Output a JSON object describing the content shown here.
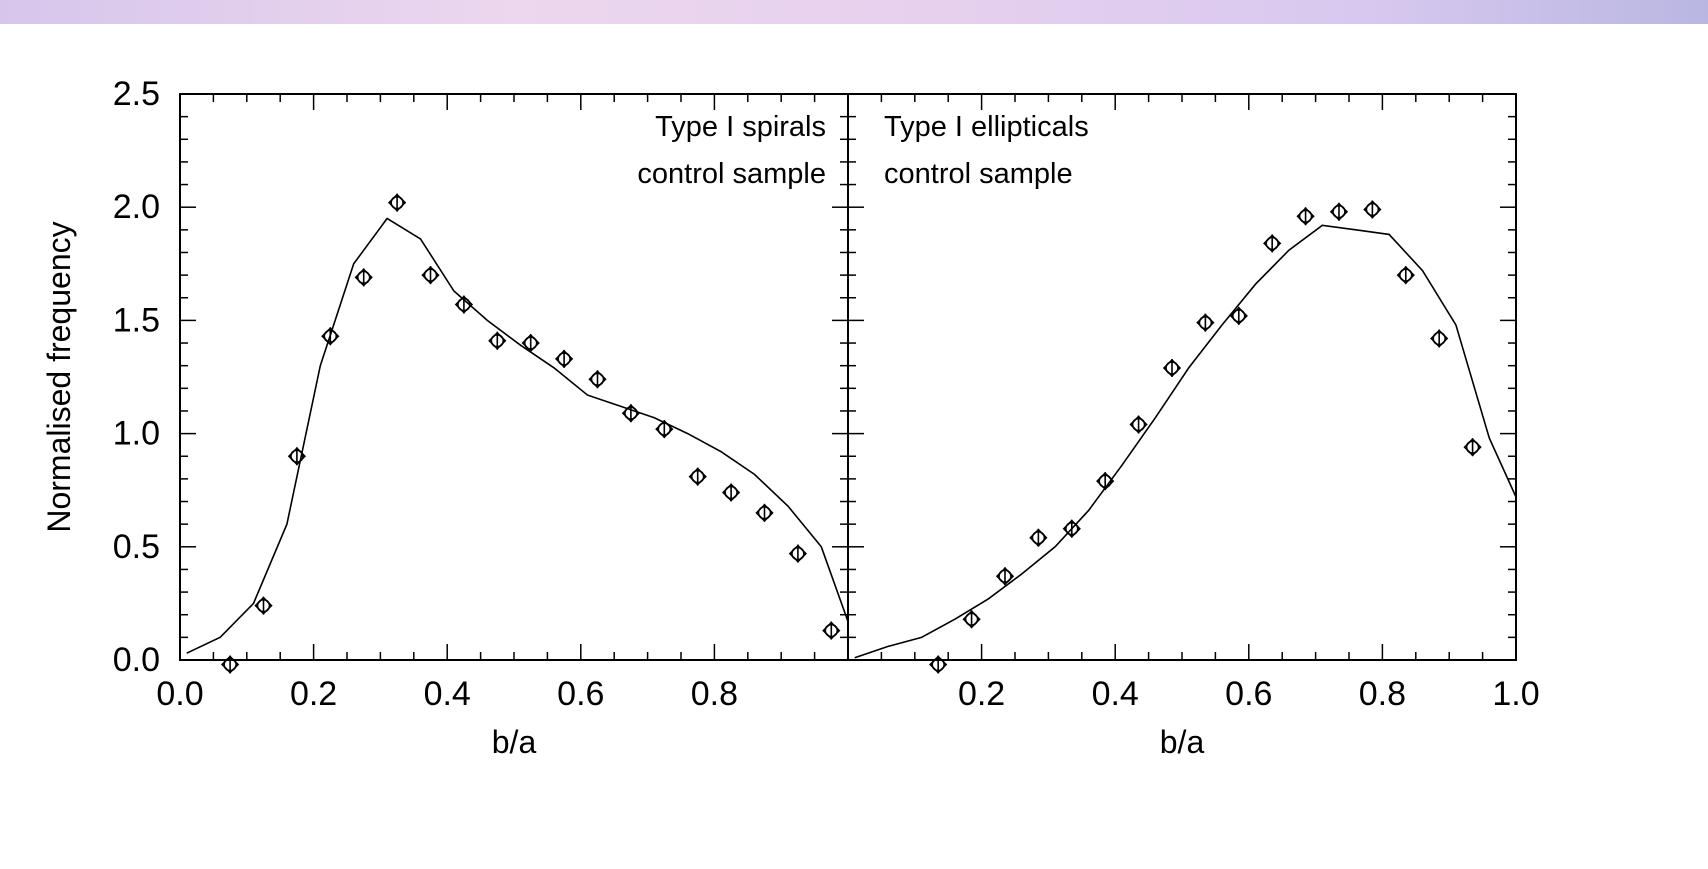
{
  "chart_data": [
    {
      "type": "scatter",
      "panel": "left",
      "title": "",
      "xlabel": "b/a",
      "ylabel": "Normalised frequency",
      "xlim": [
        0.0,
        1.0
      ],
      "ylim": [
        0.0,
        2.5
      ],
      "x_tick_labels": [
        "0.0",
        "0.2",
        "0.4",
        "0.6",
        "0.8"
      ],
      "y_tick_labels": [
        "0.0",
        "0.5",
        "1.0",
        "1.5",
        "2.0",
        "2.5"
      ],
      "annotation": [
        "Type I spirals",
        "control sample"
      ],
      "series": [
        {
          "kind": "points",
          "x": [
            0.075,
            0.125,
            0.175,
            0.225,
            0.275,
            0.325,
            0.375,
            0.425,
            0.475,
            0.525,
            0.575,
            0.625,
            0.675,
            0.725,
            0.775,
            0.825,
            0.875,
            0.925,
            0.975
          ],
          "y": [
            -0.02,
            0.24,
            0.9,
            1.43,
            1.69,
            2.02,
            1.7,
            1.57,
            1.41,
            1.4,
            1.33,
            1.24,
            1.09,
            1.02,
            0.81,
            0.74,
            0.65,
            0.47,
            0.13
          ]
        },
        {
          "kind": "line",
          "x": [
            0.01,
            0.06,
            0.11,
            0.16,
            0.21,
            0.26,
            0.31,
            0.36,
            0.41,
            0.46,
            0.51,
            0.56,
            0.61,
            0.66,
            0.71,
            0.76,
            0.81,
            0.86,
            0.91,
            0.96,
            1.0
          ],
          "y": [
            0.03,
            0.1,
            0.25,
            0.6,
            1.3,
            1.75,
            1.95,
            1.86,
            1.63,
            1.5,
            1.39,
            1.29,
            1.17,
            1.12,
            1.07,
            1.0,
            0.92,
            0.82,
            0.68,
            0.5,
            0.17
          ]
        }
      ]
    },
    {
      "type": "scatter",
      "panel": "right",
      "title": "",
      "xlabel": "b/a",
      "ylabel": "",
      "xlim": [
        0.0,
        1.0
      ],
      "ylim": [
        0.0,
        2.5
      ],
      "x_tick_labels": [
        "0.2",
        "0.4",
        "0.6",
        "0.8",
        "1.0"
      ],
      "annotation": [
        "Type I ellipticals",
        "control sample"
      ],
      "series": [
        {
          "kind": "points",
          "x": [
            0.135,
            0.185,
            0.235,
            0.285,
            0.335,
            0.385,
            0.435,
            0.485,
            0.535,
            0.585,
            0.635,
            0.685,
            0.735,
            0.785,
            0.835,
            0.885,
            0.935
          ],
          "y": [
            -0.02,
            0.18,
            0.37,
            0.54,
            0.58,
            0.79,
            1.04,
            1.29,
            1.49,
            1.52,
            1.84,
            1.96,
            1.98,
            1.99,
            1.7,
            1.42,
            0.94
          ]
        },
        {
          "kind": "line",
          "x": [
            0.01,
            0.06,
            0.11,
            0.16,
            0.21,
            0.26,
            0.31,
            0.36,
            0.41,
            0.46,
            0.51,
            0.56,
            0.61,
            0.66,
            0.71,
            0.76,
            0.81,
            0.86,
            0.91,
            0.96,
            1.0
          ],
          "y": [
            0.01,
            0.06,
            0.1,
            0.18,
            0.27,
            0.38,
            0.5,
            0.66,
            0.86,
            1.07,
            1.29,
            1.48,
            1.66,
            1.81,
            1.92,
            1.9,
            1.88,
            1.72,
            1.48,
            0.98,
            0.72
          ]
        }
      ]
    }
  ]
}
